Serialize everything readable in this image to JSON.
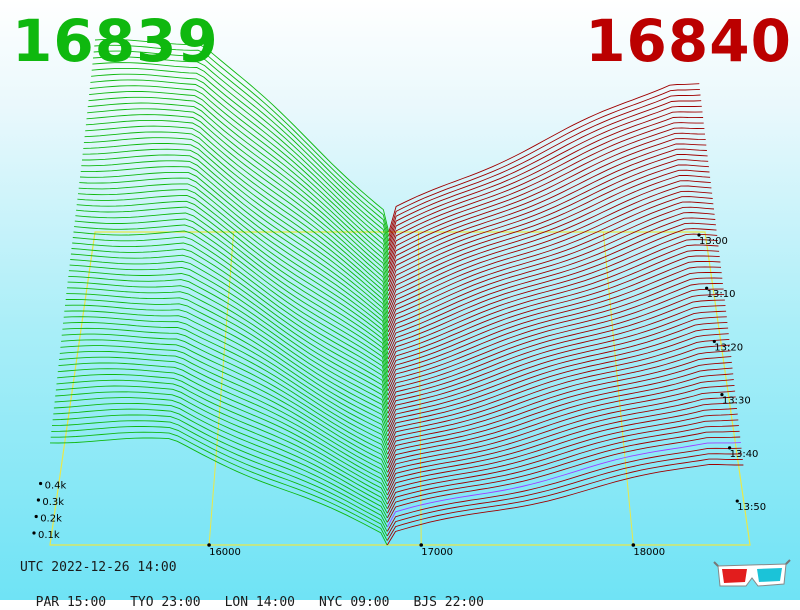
{
  "header": {
    "bid": "16839",
    "ask": "16840",
    "bid_color": "#0fb80f",
    "ask_color": "#bb0000"
  },
  "status": {
    "utc": "UTC 2022-12-26 14:00",
    "cities": [
      {
        "label": "PAR 15:00"
      },
      {
        "label": "TYO 23:00"
      },
      {
        "label": "LON 14:00"
      },
      {
        "label": "NYC 09:00"
      },
      {
        "label": "BJS 22:00"
      }
    ]
  },
  "icons": {
    "glasses": "3d-glasses-icon"
  },
  "chart_data": {
    "type": "area",
    "description_type": "3d order book depth waterfall",
    "x_ticks": [
      16000,
      17000,
      18000
    ],
    "y_ticks": [
      "0.1k",
      "0.2k",
      "0.3k",
      "0.4k"
    ],
    "time_ticks": [
      "13:00",
      "13:10",
      "13:20",
      "13:30",
      "13:40",
      "13:50"
    ],
    "bid_price": 16839,
    "ask_price": 16840,
    "colors": {
      "bid": "#0fb80f",
      "ask": "#a00000",
      "grid": "#e8e84a",
      "latest": "#a040ff"
    }
  }
}
